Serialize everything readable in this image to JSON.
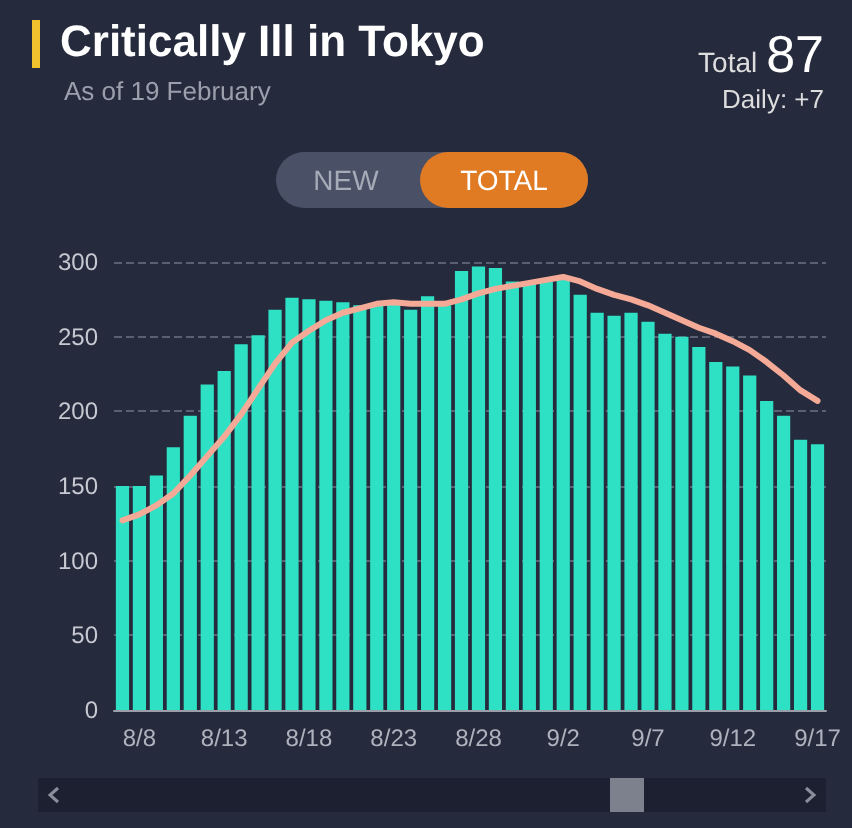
{
  "chart_data": {
    "type": "bar",
    "title": "Critically Ill in Tokyo",
    "subtitle": "As of 19 February",
    "annotations": [
      "Total",
      "87",
      "Daily: +7",
      "NEW",
      "TOTAL"
    ],
    "categories": [
      null,
      "8/8",
      null,
      null,
      null,
      null,
      "8/13",
      null,
      null,
      null,
      null,
      "8/18",
      null,
      null,
      null,
      null,
      "8/23",
      null,
      null,
      null,
      null,
      "8/28",
      null,
      null,
      null,
      null,
      "9/2",
      null,
      null,
      null,
      null,
      "9/7",
      null,
      null,
      null,
      null,
      "9/12",
      null,
      null,
      null,
      null,
      "9/17"
    ],
    "series": [
      {
        "color": "#2ee0c4",
        "values": [
          150,
          150,
          157,
          176,
          197,
          218,
          227,
          245,
          251,
          268,
          276,
          275,
          274,
          273,
          271,
          272,
          272,
          268,
          277,
          271,
          294,
          297,
          296,
          287,
          287,
          287,
          289,
          278,
          266,
          264,
          266,
          260,
          252,
          250,
          243,
          233,
          230,
          224,
          207,
          197,
          181,
          178
        ]
      },
      {
        "type": "line",
        "color": "#f4aa96",
        "values": [
          127,
          131,
          137,
          145,
          157,
          170,
          183,
          198,
          215,
          232,
          246,
          254,
          261,
          266,
          269,
          272,
          273,
          272,
          272,
          272,
          275,
          279,
          282,
          284,
          286,
          288,
          290,
          287,
          282,
          278,
          275,
          271,
          266,
          261,
          256,
          252,
          247,
          241,
          233,
          224,
          214,
          207
        ]
      }
    ],
    "ylim": [
      0,
      300
    ],
    "yticks": [
      0,
      50,
      100,
      150,
      200,
      250,
      300
    ],
    "grid": "y",
    "marker": "none",
    "line_style": "solid"
  }
}
